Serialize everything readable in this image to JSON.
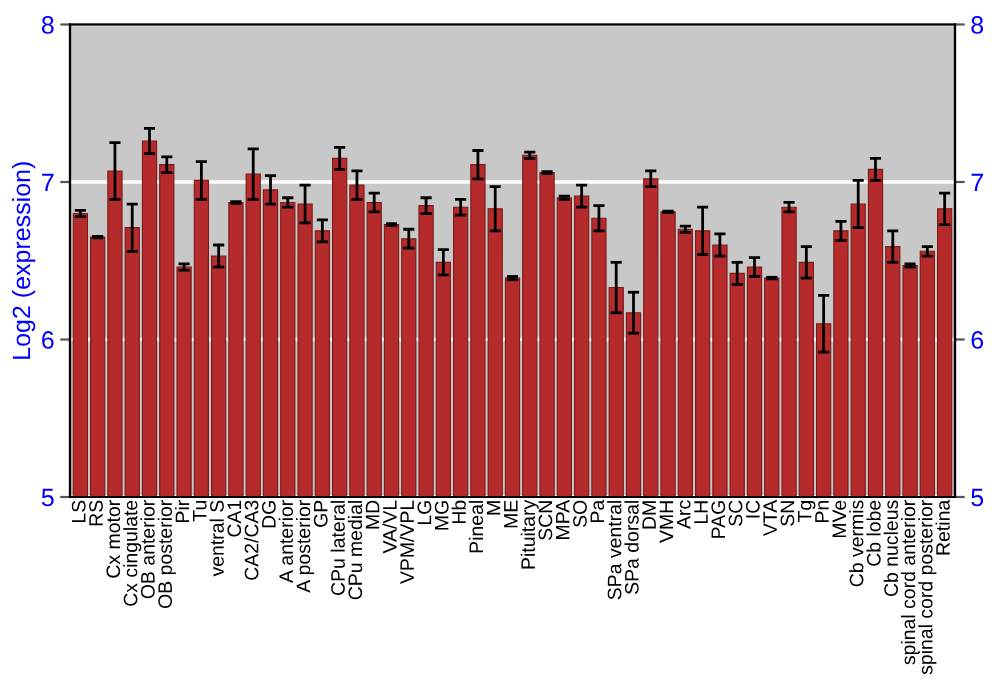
{
  "chart_data": {
    "type": "bar",
    "ylabel": "Log2 (expression)",
    "categories": [
      "LS",
      "RS",
      "Cx motor",
      "Cx cingulate",
      "OB anterior",
      "OB posterior",
      "Pir",
      "Tu",
      "ventral S",
      "CA1",
      "CA2/CA3",
      "DG",
      "A anterior",
      "A posterior",
      "GP",
      "CPu lateral",
      "CPu medial",
      "MD",
      "VA/VL",
      "VPM/VPL",
      "LG",
      "MG",
      "Hb",
      "Pineal",
      "M",
      "ME",
      "Pituitary",
      "SCN",
      "MPA",
      "SO",
      "Pa",
      "SPa ventral",
      "SPa dorsal",
      "DM",
      "VMH",
      "Arc",
      "LH",
      "PAG",
      "SC",
      "IC",
      "VTA",
      "SN",
      "Tg",
      "Pn",
      "MVe",
      "Cb vermis",
      "Cb lobe",
      "Cb nucleus",
      "spinal cord anterior",
      "spinal cord posterior",
      "Retina"
    ],
    "values": [
      6.8,
      6.65,
      7.07,
      6.71,
      7.26,
      7.11,
      6.46,
      7.01,
      6.53,
      6.87,
      7.05,
      6.95,
      6.87,
      6.86,
      6.69,
      7.15,
      6.98,
      6.87,
      6.73,
      6.64,
      6.85,
      6.49,
      6.84,
      7.11,
      6.83,
      6.39,
      7.17,
      7.06,
      6.9,
      6.91,
      6.77,
      6.33,
      6.17,
      7.02,
      6.81,
      6.7,
      6.69,
      6.6,
      6.42,
      6.46,
      6.39,
      6.84,
      6.49,
      6.1,
      6.69,
      6.86,
      7.08,
      6.59,
      6.47,
      6.56,
      6.83
    ],
    "errors": [
      0.02,
      0.005,
      0.18,
      0.15,
      0.08,
      0.05,
      0.02,
      0.12,
      0.07,
      0.005,
      0.16,
      0.09,
      0.03,
      0.12,
      0.07,
      0.07,
      0.09,
      0.06,
      0.005,
      0.06,
      0.05,
      0.08,
      0.05,
      0.09,
      0.14,
      0.01,
      0.02,
      0.005,
      0.01,
      0.07,
      0.08,
      0.16,
      0.13,
      0.05,
      0.005,
      0.02,
      0.15,
      0.07,
      0.07,
      0.06,
      0.005,
      0.03,
      0.1,
      0.18,
      0.06,
      0.15,
      0.07,
      0.1,
      0.01,
      0.03,
      0.1
    ],
    "color": "#b52a2a",
    "ylim": [
      5,
      8
    ],
    "yticks": [
      5,
      6,
      7,
      8
    ],
    "y2lim": [
      5,
      8
    ],
    "y2ticks": [
      5,
      6,
      7,
      8
    ],
    "grid": "y"
  }
}
